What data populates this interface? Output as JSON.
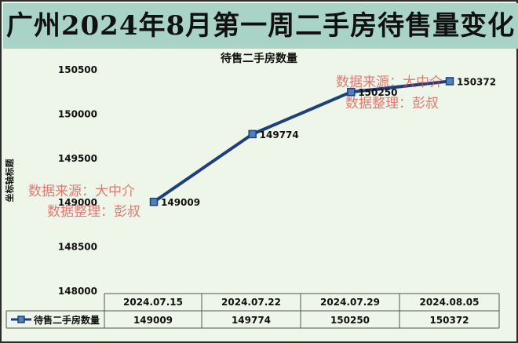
{
  "banner_title": "广州2024年8月第一周二手房待售量变化",
  "watermarks": [
    {
      "line1": "数据来源：大中介",
      "line2": "数据整理：彭叔"
    },
    {
      "line1": "数据来源：大中介",
      "line2": "数据整理：彭叔"
    }
  ],
  "colors": {
    "banner": "#a8d3c6",
    "plot_bg": "#eef5e9",
    "series": "#1f3f7a",
    "marker": "#4f81bd",
    "watermark": "#d9534f"
  },
  "chart_data": {
    "type": "line",
    "title": "待售二手房数量",
    "ylabel": "坐标轴标题",
    "categories": [
      "2024.07.15",
      "2024.07.22",
      "2024.07.29",
      "2024.08.05"
    ],
    "series": [
      {
        "name": "待售二手房数量",
        "values": [
          149009,
          149774,
          150250,
          150372
        ]
      }
    ],
    "data_labels": [
      "149009",
      "149774",
      "150250",
      "150372"
    ],
    "table_values": [
      "149009",
      "149774",
      "150250",
      "150372"
    ],
    "y_ticks": [
      "148000",
      "148500",
      "149000",
      "149500",
      "150000",
      "150500"
    ],
    "ylim": [
      148000,
      150500
    ],
    "grid": false,
    "data_table": true
  }
}
